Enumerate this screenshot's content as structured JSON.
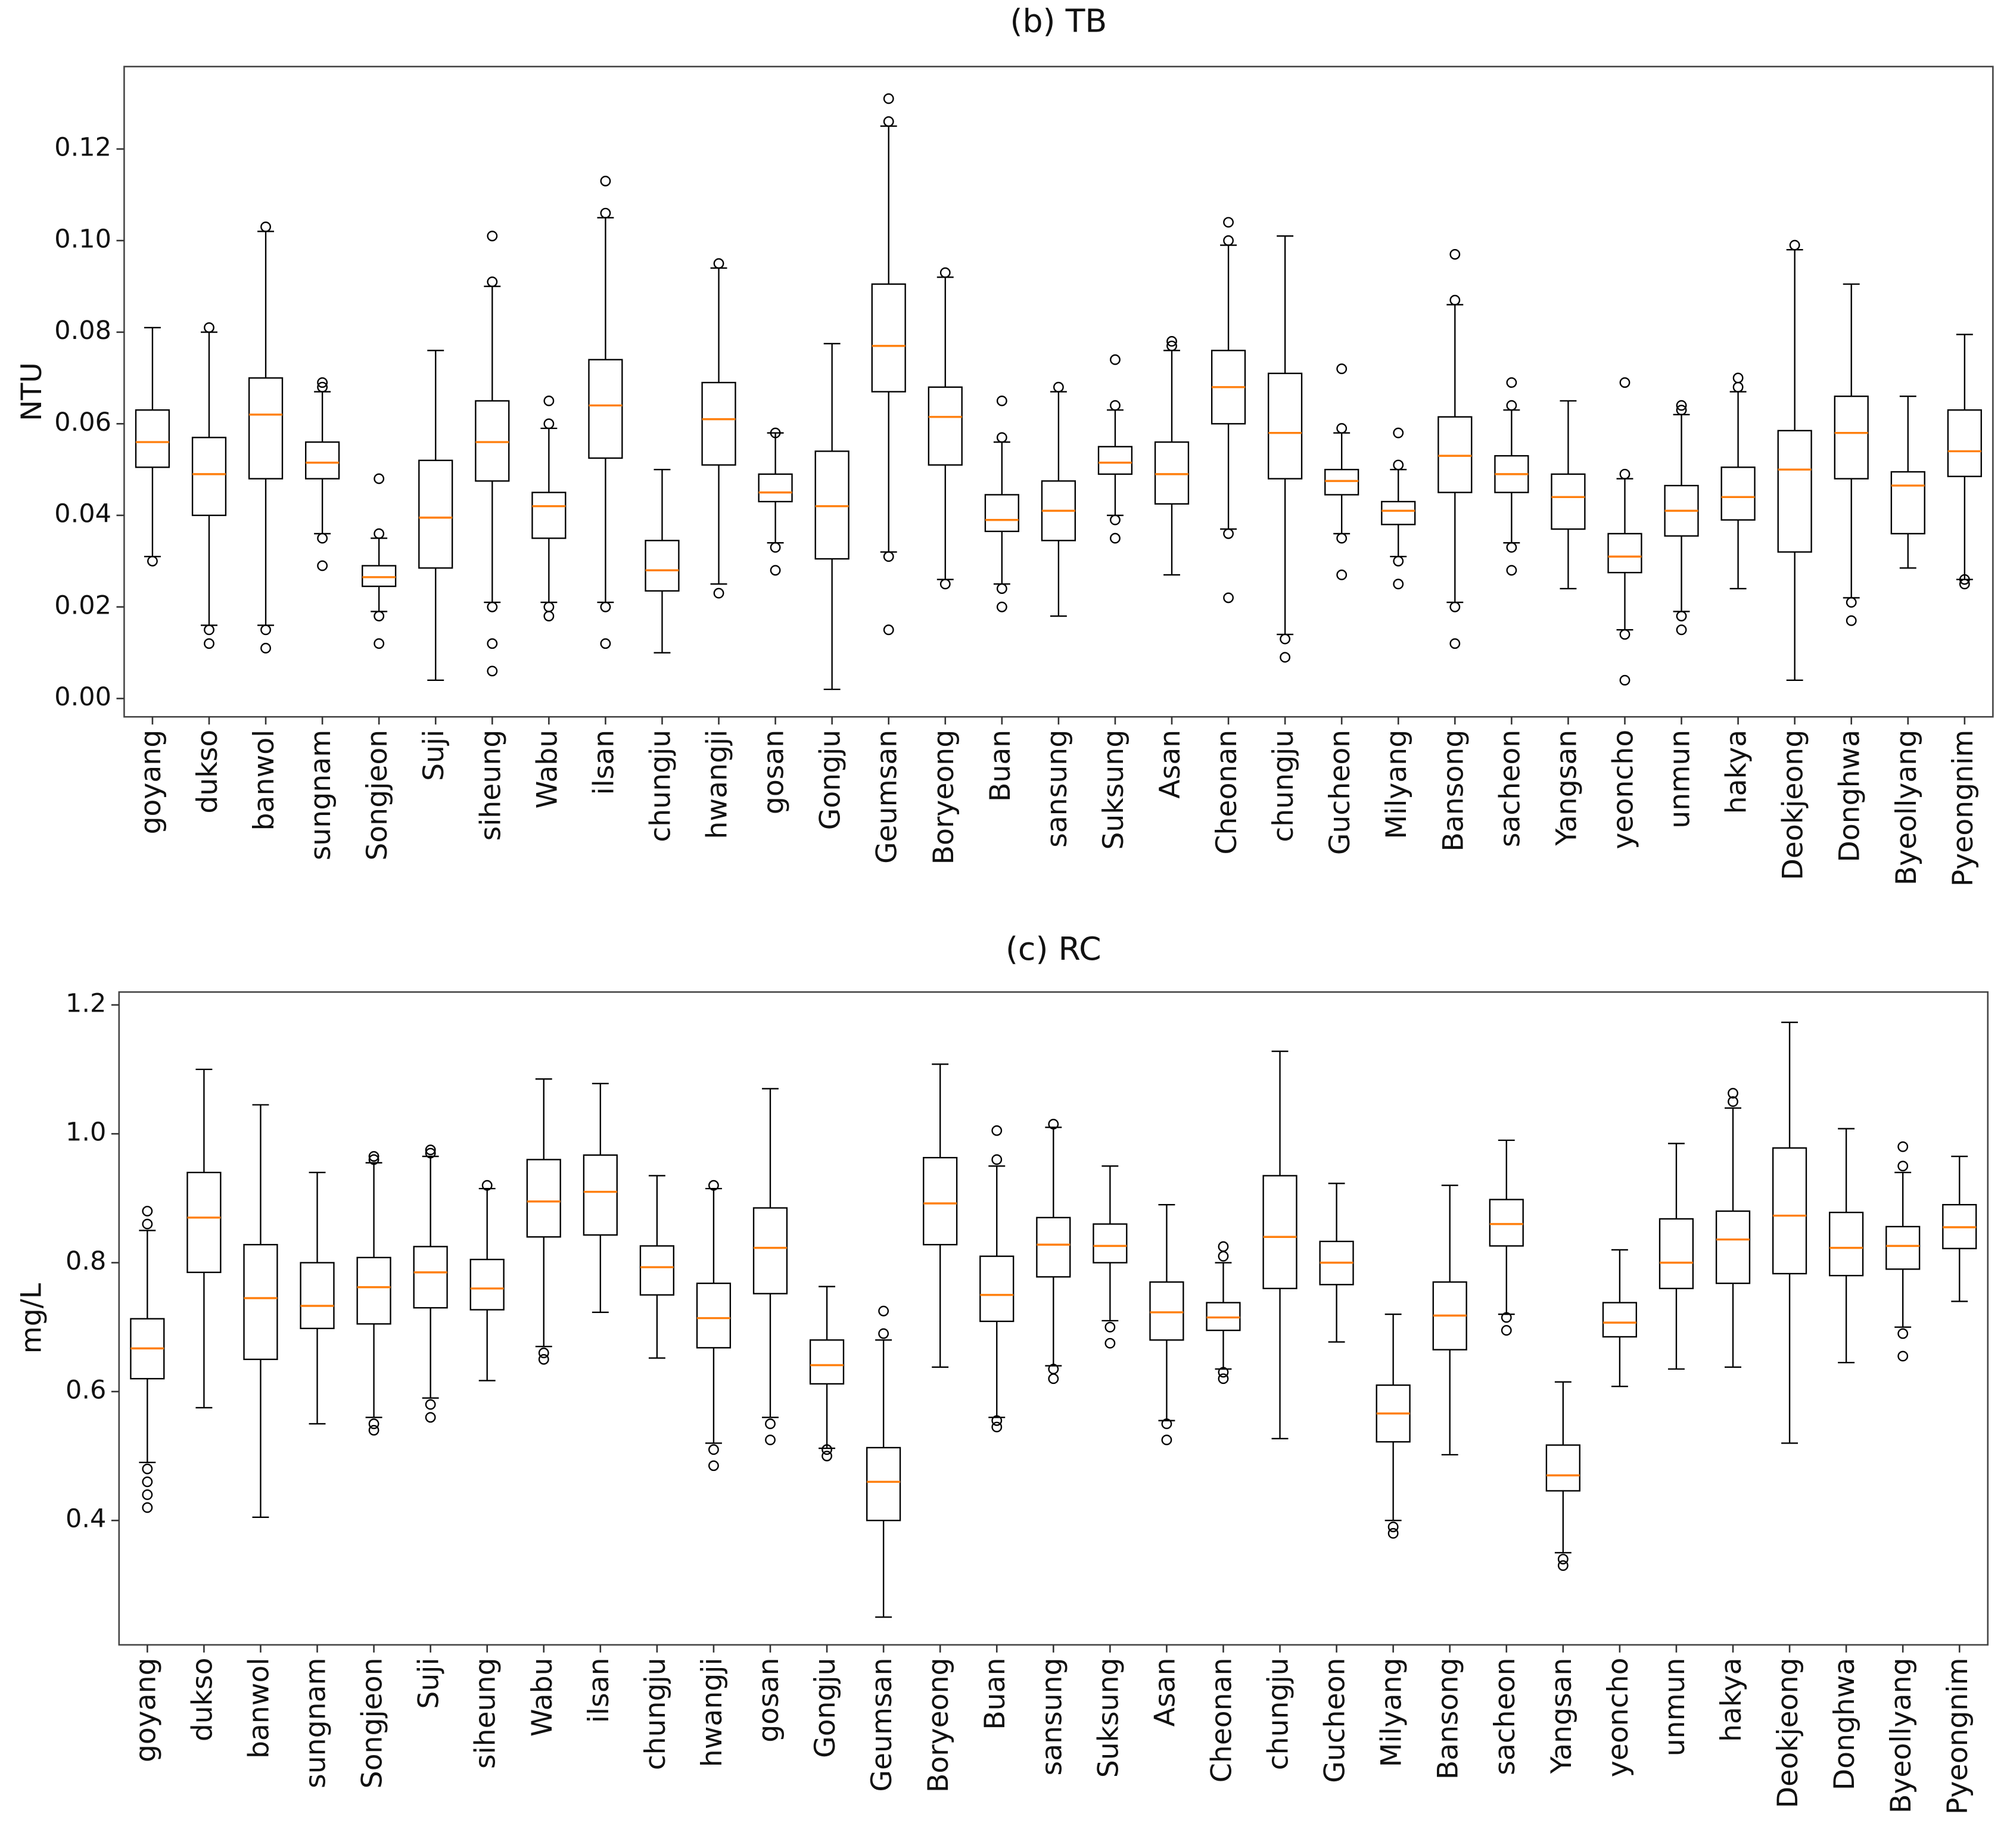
{
  "chart_data": [
    {
      "type": "box",
      "title": "(b) TB",
      "ylabel": "NTU",
      "box_color": "#000000",
      "median_color": "#ff7f0e",
      "ylim": [
        -0.004,
        0.138
      ],
      "yticks": [
        {
          "value": 0,
          "label": "0.00"
        },
        0.02,
        0.04,
        0.06,
        0.08,
        {
          "value": 0.1,
          "label": "0.10"
        },
        0.12
      ],
      "categories": [
        "goyang",
        "dukso",
        "banwol",
        "sungnam",
        "Songjeon",
        "Suji",
        "siheung",
        "Wabu",
        "ilsan",
        "chungju",
        "hwangji",
        "gosan",
        "Gongju",
        "Geumsan",
        "Boryeong",
        "Buan",
        "sansung",
        "Suksung",
        "Asan",
        "Cheonan",
        "chungju",
        "Gucheon",
        "Milyang",
        "Bansong",
        "sacheon",
        "Yangsan",
        "yeoncho",
        "unmun",
        "hakya",
        "Deokjeong",
        "Donghwa",
        "Byeollyang",
        "Pyeongnim"
      ],
      "boxes": [
        {
          "whislo": 0.031,
          "q1": 0.0505,
          "med": 0.056,
          "q3": 0.063,
          "whishi": 0.081,
          "fliers": [
            0.03
          ]
        },
        {
          "whislo": 0.016,
          "q1": 0.04,
          "med": 0.049,
          "q3": 0.057,
          "whishi": 0.08,
          "fliers": [
            0.012,
            0.015,
            0.081
          ]
        },
        {
          "whislo": 0.016,
          "q1": 0.048,
          "med": 0.062,
          "q3": 0.07,
          "whishi": 0.102,
          "fliers": [
            0.011,
            0.015,
            0.103
          ]
        },
        {
          "whislo": 0.036,
          "q1": 0.048,
          "med": 0.0515,
          "q3": 0.056,
          "whishi": 0.067,
          "fliers": [
            0.029,
            0.035,
            0.068,
            0.069
          ]
        },
        {
          "whislo": 0.019,
          "q1": 0.0245,
          "med": 0.0265,
          "q3": 0.029,
          "whishi": 0.035,
          "fliers": [
            0.012,
            0.018,
            0.036,
            0.048
          ]
        },
        {
          "whislo": 0.004,
          "q1": 0.0285,
          "med": 0.0395,
          "q3": 0.052,
          "whishi": 0.076,
          "fliers": []
        },
        {
          "whislo": 0.021,
          "q1": 0.0475,
          "med": 0.056,
          "q3": 0.065,
          "whishi": 0.09,
          "fliers": [
            0.006,
            0.012,
            0.02,
            0.091,
            0.101
          ]
        },
        {
          "whislo": 0.021,
          "q1": 0.035,
          "med": 0.042,
          "q3": 0.045,
          "whishi": 0.059,
          "fliers": [
            0.018,
            0.02,
            0.06,
            0.065
          ]
        },
        {
          "whislo": 0.021,
          "q1": 0.0525,
          "med": 0.064,
          "q3": 0.074,
          "whishi": 0.105,
          "fliers": [
            0.012,
            0.02,
            0.106,
            0.113
          ]
        },
        {
          "whislo": 0.01,
          "q1": 0.0235,
          "med": 0.028,
          "q3": 0.0345,
          "whishi": 0.05,
          "fliers": []
        },
        {
          "whislo": 0.025,
          "q1": 0.051,
          "med": 0.061,
          "q3": 0.069,
          "whishi": 0.094,
          "fliers": [
            0.023,
            0.095
          ]
        },
        {
          "whislo": 0.034,
          "q1": 0.043,
          "med": 0.045,
          "q3": 0.049,
          "whishi": 0.058,
          "fliers": [
            0.028,
            0.033,
            0.058
          ]
        },
        {
          "whislo": 0.002,
          "q1": 0.0305,
          "med": 0.042,
          "q3": 0.054,
          "whishi": 0.0775,
          "fliers": []
        },
        {
          "whislo": 0.032,
          "q1": 0.067,
          "med": 0.077,
          "q3": 0.0905,
          "whishi": 0.125,
          "fliers": [
            0.015,
            0.031,
            0.126,
            0.131
          ]
        },
        {
          "whislo": 0.026,
          "q1": 0.051,
          "med": 0.0615,
          "q3": 0.068,
          "whishi": 0.092,
          "fliers": [
            0.025,
            0.093
          ]
        },
        {
          "whislo": 0.025,
          "q1": 0.0365,
          "med": 0.039,
          "q3": 0.0445,
          "whishi": 0.056,
          "fliers": [
            0.02,
            0.024,
            0.057,
            0.065
          ]
        },
        {
          "whislo": 0.018,
          "q1": 0.0345,
          "med": 0.041,
          "q3": 0.0475,
          "whishi": 0.067,
          "fliers": [
            0.068
          ]
        },
        {
          "whislo": 0.04,
          "q1": 0.049,
          "med": 0.0515,
          "q3": 0.055,
          "whishi": 0.063,
          "fliers": [
            0.035,
            0.039,
            0.064,
            0.074
          ]
        },
        {
          "whislo": 0.027,
          "q1": 0.0425,
          "med": 0.049,
          "q3": 0.056,
          "whishi": 0.076,
          "fliers": [
            0.077,
            0.078
          ]
        },
        {
          "whislo": 0.037,
          "q1": 0.06,
          "med": 0.068,
          "q3": 0.076,
          "whishi": 0.099,
          "fliers": [
            0.022,
            0.036,
            0.1,
            0.104
          ]
        },
        {
          "whislo": 0.014,
          "q1": 0.048,
          "med": 0.058,
          "q3": 0.071,
          "whishi": 0.101,
          "fliers": [
            0.009,
            0.013
          ]
        },
        {
          "whislo": 0.036,
          "q1": 0.0445,
          "med": 0.0475,
          "q3": 0.05,
          "whishi": 0.058,
          "fliers": [
            0.027,
            0.035,
            0.059,
            0.072
          ]
        },
        {
          "whislo": 0.031,
          "q1": 0.038,
          "med": 0.041,
          "q3": 0.043,
          "whishi": 0.05,
          "fliers": [
            0.025,
            0.03,
            0.051,
            0.058
          ]
        },
        {
          "whislo": 0.021,
          "q1": 0.045,
          "med": 0.053,
          "q3": 0.0615,
          "whishi": 0.086,
          "fliers": [
            0.012,
            0.02,
            0.087,
            0.097
          ]
        },
        {
          "whislo": 0.034,
          "q1": 0.045,
          "med": 0.049,
          "q3": 0.053,
          "whishi": 0.063,
          "fliers": [
            0.028,
            0.033,
            0.064,
            0.069
          ]
        },
        {
          "whislo": 0.024,
          "q1": 0.037,
          "med": 0.044,
          "q3": 0.049,
          "whishi": 0.065,
          "fliers": []
        },
        {
          "whislo": 0.015,
          "q1": 0.0275,
          "med": 0.031,
          "q3": 0.036,
          "whishi": 0.048,
          "fliers": [
            0.004,
            0.014,
            0.049,
            0.069
          ]
        },
        {
          "whislo": 0.019,
          "q1": 0.0355,
          "med": 0.041,
          "q3": 0.0465,
          "whishi": 0.062,
          "fliers": [
            0.015,
            0.018,
            0.063,
            0.064
          ]
        },
        {
          "whislo": 0.024,
          "q1": 0.039,
          "med": 0.044,
          "q3": 0.0505,
          "whishi": 0.067,
          "fliers": [
            0.068,
            0.07
          ]
        },
        {
          "whislo": 0.004,
          "q1": 0.032,
          "med": 0.05,
          "q3": 0.0585,
          "whishi": 0.098,
          "fliers": [
            0.099
          ]
        },
        {
          "whislo": 0.022,
          "q1": 0.048,
          "med": 0.058,
          "q3": 0.066,
          "whishi": 0.0905,
          "fliers": [
            0.017,
            0.021
          ]
        },
        {
          "whislo": 0.0285,
          "q1": 0.036,
          "med": 0.0465,
          "q3": 0.0495,
          "whishi": 0.066,
          "fliers": []
        },
        {
          "whislo": 0.026,
          "q1": 0.0485,
          "med": 0.054,
          "q3": 0.063,
          "whishi": 0.0795,
          "fliers": [
            0.025,
            0.026
          ]
        }
      ]
    },
    {
      "type": "box",
      "title": "(c) RC",
      "ylabel": "mg/L",
      "box_color": "#000000",
      "median_color": "#ff7f0e",
      "ylim": [
        0.207,
        1.22
      ],
      "yticks": [
        0.4,
        0.6,
        0.8,
        {
          "value": 1,
          "label": "1.0"
        },
        1.2
      ],
      "categories": [
        "goyang",
        "dukso",
        "banwol",
        "sungnam",
        "Songjeon",
        "Suji",
        "siheung",
        "Wabu",
        "ilsan",
        "chungju",
        "hwangji",
        "gosan",
        "Gongju",
        "Geumsan",
        "Boryeong",
        "Buan",
        "sansung",
        "Suksung",
        "Asan",
        "Cheonan",
        "chungju",
        "Gucheon",
        "Milyang",
        "Bansong",
        "sacheon",
        "Yangsan",
        "yeoncho",
        "unmun",
        "hakya",
        "Deokjeong",
        "Donghwa",
        "Byeollyang",
        "Pyeongnim"
      ],
      "boxes": [
        {
          "whislo": 0.49,
          "q1": 0.62,
          "med": 0.667,
          "q3": 0.713,
          "whishi": 0.85,
          "fliers": [
            0.42,
            0.44,
            0.46,
            0.48,
            0.86,
            0.88
          ]
        },
        {
          "whislo": 0.575,
          "q1": 0.785,
          "med": 0.87,
          "q3": 0.94,
          "whishi": 1.1,
          "fliers": []
        },
        {
          "whislo": 0.405,
          "q1": 0.65,
          "med": 0.745,
          "q3": 0.828,
          "whishi": 1.045,
          "fliers": []
        },
        {
          "whislo": 0.55,
          "q1": 0.698,
          "med": 0.733,
          "q3": 0.8,
          "whishi": 0.94,
          "fliers": []
        },
        {
          "whislo": 0.56,
          "q1": 0.705,
          "med": 0.762,
          "q3": 0.808,
          "whishi": 0.955,
          "fliers": [
            0.54,
            0.55,
            0.96,
            0.965
          ]
        },
        {
          "whislo": 0.59,
          "q1": 0.73,
          "med": 0.785,
          "q3": 0.825,
          "whishi": 0.965,
          "fliers": [
            0.56,
            0.58,
            0.97,
            0.975
          ]
        },
        {
          "whislo": 0.617,
          "q1": 0.727,
          "med": 0.76,
          "q3": 0.805,
          "whishi": 0.915,
          "fliers": [
            0.92
          ]
        },
        {
          "whislo": 0.67,
          "q1": 0.84,
          "med": 0.895,
          "q3": 0.96,
          "whishi": 1.085,
          "fliers": [
            0.65,
            0.66
          ]
        },
        {
          "whislo": 0.723,
          "q1": 0.843,
          "med": 0.91,
          "q3": 0.967,
          "whishi": 1.078,
          "fliers": []
        },
        {
          "whislo": 0.652,
          "q1": 0.75,
          "med": 0.793,
          "q3": 0.826,
          "whishi": 0.935,
          "fliers": []
        },
        {
          "whislo": 0.52,
          "q1": 0.668,
          "med": 0.714,
          "q3": 0.768,
          "whishi": 0.915,
          "fliers": [
            0.485,
            0.51,
            0.92
          ]
        },
        {
          "whislo": 0.56,
          "q1": 0.752,
          "med": 0.823,
          "q3": 0.885,
          "whishi": 1.07,
          "fliers": [
            0.525,
            0.55
          ]
        },
        {
          "whislo": 0.512,
          "q1": 0.612,
          "med": 0.641,
          "q3": 0.68,
          "whishi": 0.763,
          "fliers": [
            0.5,
            0.51
          ]
        },
        {
          "whislo": 0.25,
          "q1": 0.4,
          "med": 0.46,
          "q3": 0.513,
          "whishi": 0.68,
          "fliers": [
            0.69,
            0.725
          ]
        },
        {
          "whislo": 0.638,
          "q1": 0.828,
          "med": 0.892,
          "q3": 0.963,
          "whishi": 1.108,
          "fliers": []
        },
        {
          "whislo": 0.56,
          "q1": 0.709,
          "med": 0.75,
          "q3": 0.81,
          "whishi": 0.95,
          "fliers": [
            0.545,
            0.555,
            0.96,
            1.005
          ]
        },
        {
          "whislo": 0.64,
          "q1": 0.778,
          "med": 0.828,
          "q3": 0.87,
          "whishi": 1.01,
          "fliers": [
            0.62,
            0.635,
            1.015
          ]
        },
        {
          "whislo": 0.71,
          "q1": 0.8,
          "med": 0.826,
          "q3": 0.86,
          "whishi": 0.95,
          "fliers": [
            0.675,
            0.7
          ]
        },
        {
          "whislo": 0.555,
          "q1": 0.68,
          "med": 0.723,
          "q3": 0.77,
          "whishi": 0.89,
          "fliers": [
            0.525,
            0.55
          ]
        },
        {
          "whislo": 0.635,
          "q1": 0.695,
          "med": 0.715,
          "q3": 0.738,
          "whishi": 0.8,
          "fliers": [
            0.62,
            0.63,
            0.81,
            0.825
          ]
        },
        {
          "whislo": 0.527,
          "q1": 0.76,
          "med": 0.84,
          "q3": 0.935,
          "whishi": 1.128,
          "fliers": []
        },
        {
          "whislo": 0.677,
          "q1": 0.766,
          "med": 0.8,
          "q3": 0.833,
          "whishi": 0.923,
          "fliers": []
        },
        {
          "whislo": 0.4,
          "q1": 0.522,
          "med": 0.566,
          "q3": 0.61,
          "whishi": 0.72,
          "fliers": [
            0.38,
            0.39
          ]
        },
        {
          "whislo": 0.502,
          "q1": 0.665,
          "med": 0.718,
          "q3": 0.77,
          "whishi": 0.92,
          "fliers": []
        },
        {
          "whislo": 0.72,
          "q1": 0.826,
          "med": 0.86,
          "q3": 0.898,
          "whishi": 0.99,
          "fliers": [
            0.695,
            0.715
          ]
        },
        {
          "whislo": 0.35,
          "q1": 0.446,
          "med": 0.47,
          "q3": 0.517,
          "whishi": 0.615,
          "fliers": [
            0.33,
            0.34
          ]
        },
        {
          "whislo": 0.608,
          "q1": 0.685,
          "med": 0.707,
          "q3": 0.738,
          "whishi": 0.82,
          "fliers": []
        },
        {
          "whislo": 0.635,
          "q1": 0.76,
          "med": 0.8,
          "q3": 0.868,
          "whishi": 0.985,
          "fliers": []
        },
        {
          "whislo": 0.638,
          "q1": 0.768,
          "med": 0.836,
          "q3": 0.88,
          "whishi": 1.04,
          "fliers": [
            1.05,
            1.063
          ]
        },
        {
          "whislo": 0.52,
          "q1": 0.783,
          "med": 0.873,
          "q3": 0.978,
          "whishi": 1.173,
          "fliers": []
        },
        {
          "whislo": 0.645,
          "q1": 0.78,
          "med": 0.823,
          "q3": 0.878,
          "whishi": 1.008,
          "fliers": []
        },
        {
          "whislo": 0.7,
          "q1": 0.79,
          "med": 0.826,
          "q3": 0.856,
          "whishi": 0.94,
          "fliers": [
            0.655,
            0.69,
            0.95,
            0.98
          ]
        },
        {
          "whislo": 0.74,
          "q1": 0.822,
          "med": 0.855,
          "q3": 0.89,
          "whishi": 0.965,
          "fliers": []
        }
      ]
    }
  ]
}
